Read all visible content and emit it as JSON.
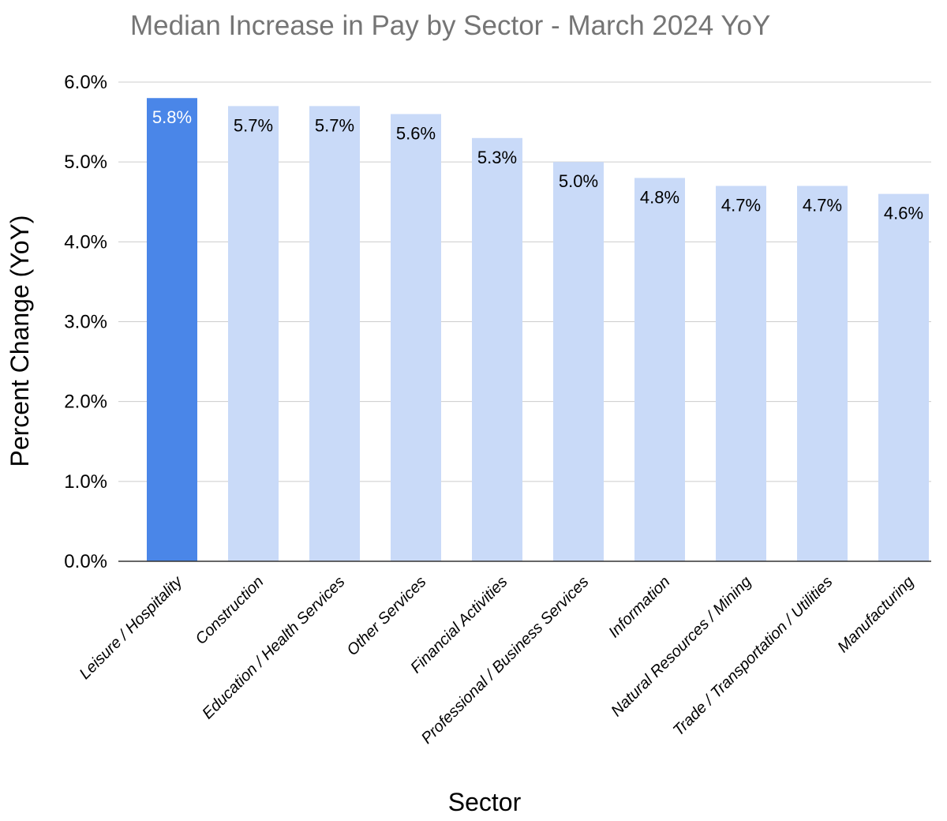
{
  "chart_data": {
    "type": "bar",
    "title": "Median Increase in Pay by Sector - March 2024 YoY",
    "xlabel": "Sector",
    "ylabel": "Percent Change (YoY)",
    "ylim": [
      0,
      6
    ],
    "yticks": [
      "0.0%",
      "1.0%",
      "2.0%",
      "3.0%",
      "4.0%",
      "5.0%",
      "6.0%"
    ],
    "grid": true,
    "categories": [
      "Leisure / Hospitality",
      "Construction",
      "Education / Health Services",
      "Other Services",
      "Financial Activities",
      "Professional / Business Services",
      "Information",
      "Natural Resources / Mining",
      "Trade / Transportation / Utilities",
      "Manufacturing"
    ],
    "values": [
      5.8,
      5.7,
      5.7,
      5.6,
      5.3,
      5.0,
      4.8,
      4.7,
      4.7,
      4.6
    ],
    "data_labels": [
      "5.8%",
      "5.7%",
      "5.7%",
      "5.6%",
      "5.3%",
      "5.0%",
      "4.8%",
      "4.7%",
      "4.7%",
      "4.6%"
    ],
    "highlight_index": 0,
    "colors": {
      "highlight": "#4a86e8",
      "bar": "#c9daf8",
      "grid": "#cccccc",
      "axis": "#333333",
      "title": "#757575",
      "label_on_highlight": "#ffffff",
      "label": "#000000"
    }
  }
}
